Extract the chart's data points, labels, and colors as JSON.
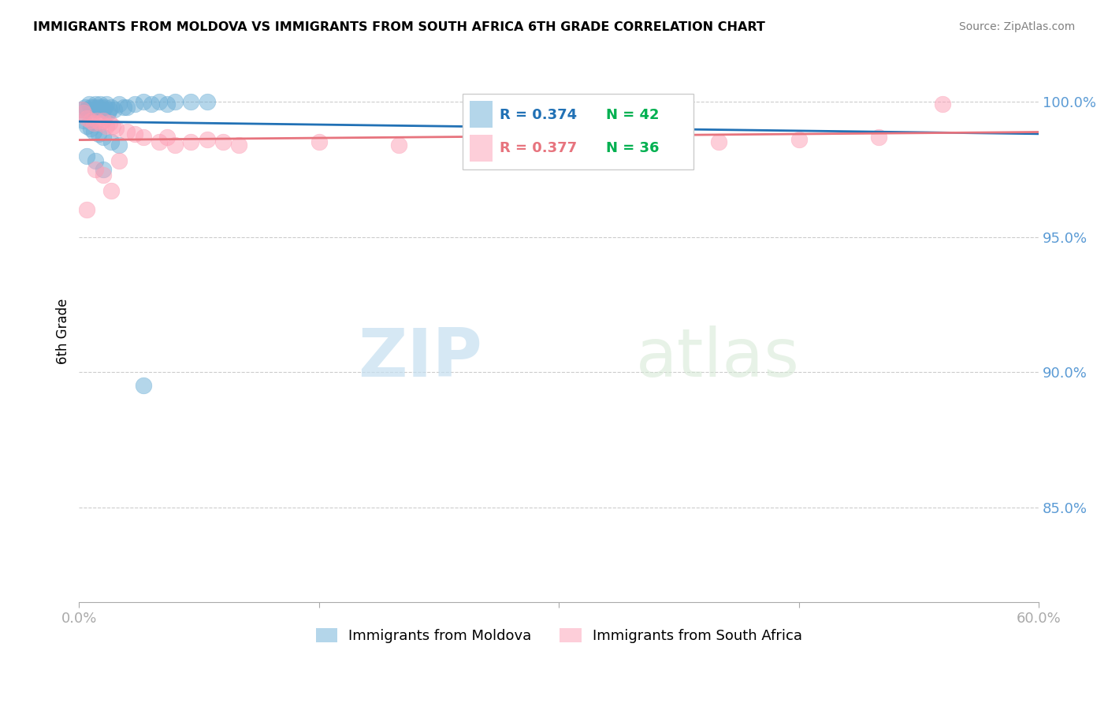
{
  "title": "IMMIGRANTS FROM MOLDOVA VS IMMIGRANTS FROM SOUTH AFRICA 6TH GRADE CORRELATION CHART",
  "source": "Source: ZipAtlas.com",
  "ylabel": "6th Grade",
  "ylabel_ticks": [
    "100.0%",
    "95.0%",
    "90.0%",
    "85.0%"
  ],
  "ylabel_values": [
    1.0,
    0.95,
    0.9,
    0.85
  ],
  "xlim": [
    0.0,
    0.6
  ],
  "ylim": [
    0.815,
    1.015
  ],
  "legend_blue_r": "R = 0.374",
  "legend_blue_n": "N = 42",
  "legend_pink_r": "R = 0.377",
  "legend_pink_n": "N = 36",
  "legend_label_blue": "Immigrants from Moldova",
  "legend_label_pink": "Immigrants from South Africa",
  "blue_color": "#6baed6",
  "pink_color": "#fd9eb5",
  "blue_line_color": "#2171b5",
  "pink_line_color": "#e7747e",
  "green_color": "#00b050",
  "blue_scatter": [
    [
      0.002,
      0.997
    ],
    [
      0.004,
      0.998
    ],
    [
      0.005,
      0.997
    ],
    [
      0.006,
      0.999
    ],
    [
      0.007,
      0.998
    ],
    [
      0.008,
      0.997
    ],
    [
      0.009,
      0.998
    ],
    [
      0.01,
      0.999
    ],
    [
      0.011,
      0.997
    ],
    [
      0.012,
      0.998
    ],
    [
      0.013,
      0.999
    ],
    [
      0.014,
      0.998
    ],
    [
      0.015,
      0.997
    ],
    [
      0.016,
      0.998
    ],
    [
      0.017,
      0.999
    ],
    [
      0.018,
      0.996
    ],
    [
      0.019,
      0.997
    ],
    [
      0.02,
      0.998
    ],
    [
      0.022,
      0.997
    ],
    [
      0.025,
      0.999
    ],
    [
      0.028,
      0.998
    ],
    [
      0.03,
      0.998
    ],
    [
      0.035,
      0.999
    ],
    [
      0.04,
      1.0
    ],
    [
      0.045,
      0.999
    ],
    [
      0.05,
      1.0
    ],
    [
      0.055,
      0.999
    ],
    [
      0.06,
      1.0
    ],
    [
      0.07,
      1.0
    ],
    [
      0.08,
      1.0
    ],
    [
      0.003,
      0.993
    ],
    [
      0.005,
      0.991
    ],
    [
      0.007,
      0.99
    ],
    [
      0.009,
      0.989
    ],
    [
      0.012,
      0.988
    ],
    [
      0.015,
      0.987
    ],
    [
      0.02,
      0.985
    ],
    [
      0.025,
      0.984
    ],
    [
      0.005,
      0.98
    ],
    [
      0.01,
      0.978
    ],
    [
      0.015,
      0.975
    ],
    [
      0.04,
      0.895
    ]
  ],
  "pink_scatter": [
    [
      0.003,
      0.996
    ],
    [
      0.005,
      0.994
    ],
    [
      0.007,
      0.993
    ],
    [
      0.009,
      0.992
    ],
    [
      0.011,
      0.993
    ],
    [
      0.013,
      0.992
    ],
    [
      0.015,
      0.993
    ],
    [
      0.017,
      0.991
    ],
    [
      0.019,
      0.992
    ],
    [
      0.021,
      0.991
    ],
    [
      0.023,
      0.99
    ],
    [
      0.03,
      0.989
    ],
    [
      0.035,
      0.988
    ],
    [
      0.04,
      0.987
    ],
    [
      0.05,
      0.985
    ],
    [
      0.06,
      0.984
    ],
    [
      0.07,
      0.985
    ],
    [
      0.08,
      0.986
    ],
    [
      0.09,
      0.985
    ],
    [
      0.1,
      0.984
    ],
    [
      0.15,
      0.985
    ],
    [
      0.2,
      0.984
    ],
    [
      0.25,
      0.985
    ],
    [
      0.3,
      0.985
    ],
    [
      0.35,
      0.986
    ],
    [
      0.4,
      0.985
    ],
    [
      0.45,
      0.986
    ],
    [
      0.5,
      0.987
    ],
    [
      0.025,
      0.978
    ],
    [
      0.01,
      0.975
    ],
    [
      0.015,
      0.973
    ],
    [
      0.02,
      0.967
    ],
    [
      0.005,
      0.96
    ],
    [
      0.055,
      0.987
    ],
    [
      0.54,
      0.999
    ],
    [
      0.002,
      0.997
    ]
  ],
  "watermark_zip": "ZIP",
  "watermark_atlas": "atlas",
  "grid_color": "#cccccc",
  "tick_color": "#5b9bd5",
  "background_color": "#ffffff"
}
